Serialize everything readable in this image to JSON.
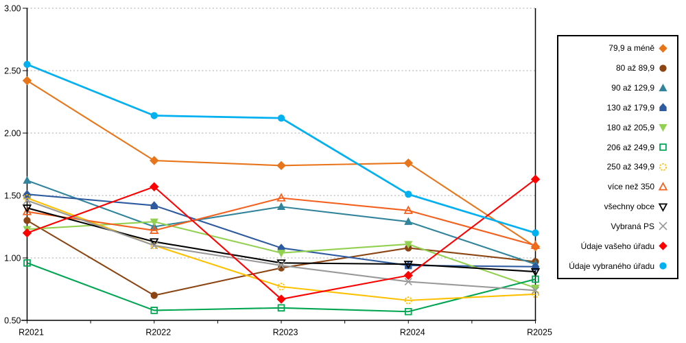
{
  "chart_data": {
    "type": "line",
    "title": "",
    "xlabel": "",
    "ylabel": "",
    "categories": [
      "R2021",
      "R2022",
      "R2023",
      "R2024",
      "R2025"
    ],
    "y_ticks": [
      "3.00",
      "2.50",
      "2.00",
      "1.50",
      "1.00",
      "0.50"
    ],
    "ylim": [
      0.5,
      3.0
    ],
    "grid": "horizontal-dashed",
    "legend_position": "right-outside-box",
    "series": [
      {
        "name": "79,9 a méně",
        "marker": "diamond",
        "style": "filled",
        "color": "#E8751A",
        "values": [
          2.42,
          1.78,
          1.74,
          1.76,
          1.09
        ]
      },
      {
        "name": "80 až 89,9",
        "marker": "circle",
        "style": "filled",
        "color": "#8B4513",
        "values": [
          1.3,
          0.7,
          0.92,
          1.08,
          0.97
        ]
      },
      {
        "name": "90 až 129,9",
        "marker": "triangle-up",
        "style": "filled",
        "color": "#31849B",
        "values": [
          1.62,
          1.25,
          1.41,
          1.29,
          0.95
        ]
      },
      {
        "name": "130 až 179,9",
        "marker": "pentagon",
        "style": "filled",
        "color": "#2E5B9F",
        "values": [
          1.51,
          1.42,
          1.08,
          0.94,
          0.93
        ]
      },
      {
        "name": "180 až 205,9",
        "marker": "triangle-down",
        "style": "filled",
        "color": "#92D050",
        "values": [
          1.23,
          1.29,
          1.04,
          1.11,
          0.76
        ]
      },
      {
        "name": "206 až 249,9",
        "marker": "square",
        "style": "open",
        "color": "#00A551",
        "values": [
          0.96,
          0.58,
          0.6,
          0.57,
          0.83
        ]
      },
      {
        "name": "250 až 349,9",
        "marker": "circle",
        "style": "open-dashed",
        "color": "#FFC000",
        "values": [
          1.48,
          1.1,
          0.77,
          0.66,
          0.71
        ]
      },
      {
        "name": "více než 350",
        "marker": "triangle-up",
        "style": "open",
        "color": "#F4611E",
        "values": [
          1.37,
          1.22,
          1.48,
          1.38,
          1.1
        ]
      },
      {
        "name": "všechny obce",
        "marker": "triangle-down",
        "style": "open",
        "color": "#000000",
        "values": [
          1.4,
          1.13,
          0.96,
          0.95,
          0.89
        ]
      },
      {
        "name": "Vybraná PS",
        "marker": "x",
        "style": "stroke",
        "color": "#999999",
        "values": [
          1.46,
          1.1,
          0.94,
          0.81,
          0.74
        ]
      },
      {
        "name": "Údaje vašeho úřadu",
        "marker": "diamond",
        "style": "filled",
        "color": "#FF0000",
        "values": [
          1.2,
          1.57,
          0.67,
          0.86,
          1.63
        ]
      },
      {
        "name": "Údaje vybraného úřadu",
        "marker": "circle",
        "style": "filled",
        "color": "#00B0F0",
        "values": [
          2.55,
          2.14,
          2.12,
          1.51,
          1.2
        ]
      }
    ],
    "colors": {
      "background": "#FFFFFF",
      "gridline": "#A6A6A6",
      "axis": "#000000"
    }
  }
}
